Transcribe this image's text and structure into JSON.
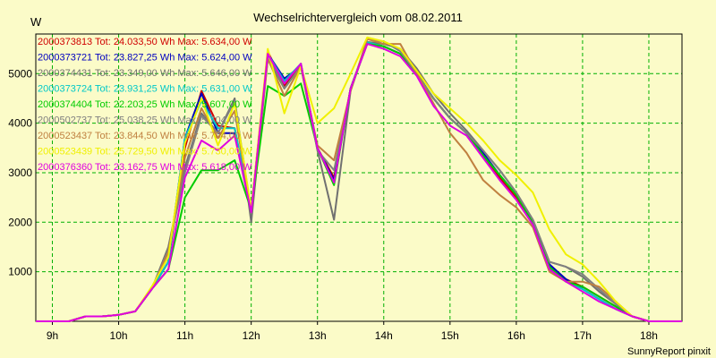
{
  "title": "Wechselrichtervergleich vom 08.02.2011",
  "unit": "W",
  "footer": "SunnyReport pinxit",
  "chart_data": {
    "type": "line",
    "title": "Wechselrichtervergleich vom 08.02.2011",
    "ylabel": "W",
    "xlabel": "",
    "xlim": [
      8.75,
      18.5
    ],
    "ylim": [
      0,
      5800
    ],
    "grid": true,
    "legend_position": "top-left",
    "x_ticks": [
      9,
      10,
      11,
      12,
      13,
      14,
      15,
      16,
      17,
      18
    ],
    "x_tick_labels": [
      "9h",
      "10h",
      "11h",
      "12h",
      "13h",
      "14h",
      "15h",
      "16h",
      "17h",
      "18h"
    ],
    "y_ticks": [
      1000,
      2000,
      3000,
      4000,
      5000
    ],
    "y_tick_labels": [
      "1000",
      "2000",
      "3000",
      "4000",
      "5000"
    ],
    "x": [
      8.75,
      9.0,
      9.25,
      9.5,
      9.75,
      10.0,
      10.25,
      10.5,
      10.75,
      11.0,
      11.25,
      11.5,
      11.75,
      12.0,
      12.25,
      12.5,
      12.75,
      13.0,
      13.25,
      13.5,
      13.75,
      14.0,
      14.25,
      14.5,
      14.75,
      15.0,
      15.25,
      15.5,
      15.75,
      16.0,
      16.25,
      16.5,
      16.75,
      17.0,
      17.25,
      17.5,
      17.75,
      18.0,
      18.25,
      18.5
    ],
    "series": [
      {
        "name": "2000373813",
        "legend": "2000373813 Tot: 24.033,50 Wh Max: 5.634,00 W",
        "color": "#d00000",
        "values": [
          0,
          0,
          0,
          100,
          100,
          130,
          200,
          650,
          1200,
          3500,
          4650,
          3950,
          3900,
          2200,
          5450,
          4750,
          5200,
          3500,
          2900,
          4700,
          5630,
          5550,
          5400,
          5000,
          4500,
          4100,
          3800,
          3350,
          2900,
          2500,
          2000,
          1100,
          850,
          700,
          500,
          300,
          100,
          0,
          0,
          0
        ]
      },
      {
        "name": "2000373721",
        "legend": "2000373721 Tot: 23.827,25 Wh Max: 5.624,00 W",
        "color": "#0000c0",
        "values": [
          0,
          0,
          0,
          100,
          100,
          130,
          200,
          650,
          1200,
          3700,
          4600,
          3800,
          3800,
          2250,
          5400,
          4900,
          5150,
          3500,
          2850,
          4700,
          5620,
          5550,
          5400,
          5000,
          4500,
          4100,
          3800,
          3400,
          2950,
          2550,
          2000,
          1150,
          850,
          650,
          450,
          250,
          100,
          0,
          0,
          0
        ]
      },
      {
        "name": "2000374431",
        "legend": "2000374431 Tot: 23.349,00 Wh Max: 5.646,00 W",
        "color": "#707070",
        "values": [
          0,
          0,
          0,
          100,
          100,
          130,
          200,
          650,
          1500,
          3100,
          4200,
          3800,
          4500,
          2000,
          5300,
          4700,
          5150,
          3450,
          2050,
          4650,
          5640,
          5600,
          5500,
          5100,
          4600,
          4200,
          3850,
          3450,
          3050,
          2600,
          2050,
          1200,
          1100,
          900,
          600,
          350,
          100,
          0,
          0,
          0
        ]
      },
      {
        "name": "2000373724",
        "legend": "2000373724 Tot: 23.931,25 Wh Max: 5.631,00 W",
        "color": "#00c8c8",
        "values": [
          0,
          0,
          0,
          100,
          100,
          130,
          200,
          650,
          1200,
          3700,
          4450,
          3900,
          3900,
          2250,
          5400,
          4850,
          5200,
          3500,
          2800,
          4700,
          5630,
          5550,
          5400,
          5000,
          4500,
          4100,
          3800,
          3350,
          2950,
          2550,
          2000,
          1100,
          800,
          650,
          450,
          250,
          100,
          0,
          0,
          0
        ]
      },
      {
        "name": "2000374404",
        "legend": "2000374404 Tot: 22.203,25 Wh Max: 5.607,00 W",
        "color": "#00cc00",
        "values": [
          0,
          0,
          0,
          100,
          100,
          130,
          200,
          650,
          1050,
          2500,
          3050,
          3050,
          3250,
          2250,
          4750,
          4550,
          4800,
          3500,
          2750,
          4700,
          5600,
          5550,
          5400,
          5000,
          4500,
          4100,
          3800,
          3350,
          2950,
          2550,
          2000,
          1100,
          800,
          700,
          500,
          300,
          100,
          0,
          0,
          0
        ]
      },
      {
        "name": "2000502737",
        "legend": "2000502737 Tot: 25.038,25 Wh Max: 5.704,00 W",
        "color": "#808080",
        "values": [
          0,
          0,
          0,
          100,
          100,
          130,
          200,
          650,
          1450,
          3000,
          4150,
          3800,
          4450,
          2200,
          5400,
          4700,
          5150,
          3450,
          3050,
          4650,
          5700,
          5650,
          5450,
          5000,
          4500,
          4100,
          3800,
          3450,
          3050,
          2600,
          2050,
          1200,
          1100,
          950,
          650,
          350,
          100,
          0,
          0,
          0
        ]
      },
      {
        "name": "2000523437",
        "legend": "2000523437 Tot: 23.844,50 Wh Max: 5.704,00 W",
        "color": "#c08040",
        "values": [
          0,
          0,
          0,
          100,
          100,
          130,
          200,
          650,
          1400,
          3300,
          4300,
          3700,
          4250,
          2200,
          5300,
          4550,
          5150,
          3550,
          3250,
          4650,
          5700,
          5600,
          5600,
          5000,
          4400,
          3800,
          3400,
          2850,
          2550,
          2300,
          1900,
          1000,
          800,
          800,
          700,
          400,
          100,
          0,
          0,
          0
        ]
      },
      {
        "name": "2000523439",
        "legend": "2000523439 Tot: 25.729,50 Wh Max: 5.730,00 W",
        "color": "#f0f000",
        "values": [
          0,
          0,
          0,
          100,
          100,
          130,
          200,
          700,
          1300,
          3600,
          4500,
          3550,
          4400,
          2250,
          5500,
          4200,
          5150,
          4000,
          4300,
          5000,
          5730,
          5650,
          5500,
          5050,
          4600,
          4300,
          4000,
          3650,
          3250,
          2950,
          2600,
          1850,
          1350,
          1150,
          800,
          400,
          100,
          0,
          0,
          0
        ]
      },
      {
        "name": "2000376360",
        "legend": "2000376360 Tot: 23.162,75 Wh Max: 5.618,00 W",
        "color": "#e000e0",
        "values": [
          0,
          0,
          0,
          100,
          100,
          130,
          200,
          650,
          1050,
          2900,
          3650,
          3450,
          3750,
          2200,
          5400,
          4800,
          5200,
          3500,
          2800,
          4700,
          5600,
          5500,
          5350,
          4950,
          4350,
          3950,
          3750,
          3300,
          2850,
          2450,
          1950,
          1050,
          800,
          600,
          400,
          250,
          100,
          0,
          0,
          0
        ]
      }
    ]
  }
}
